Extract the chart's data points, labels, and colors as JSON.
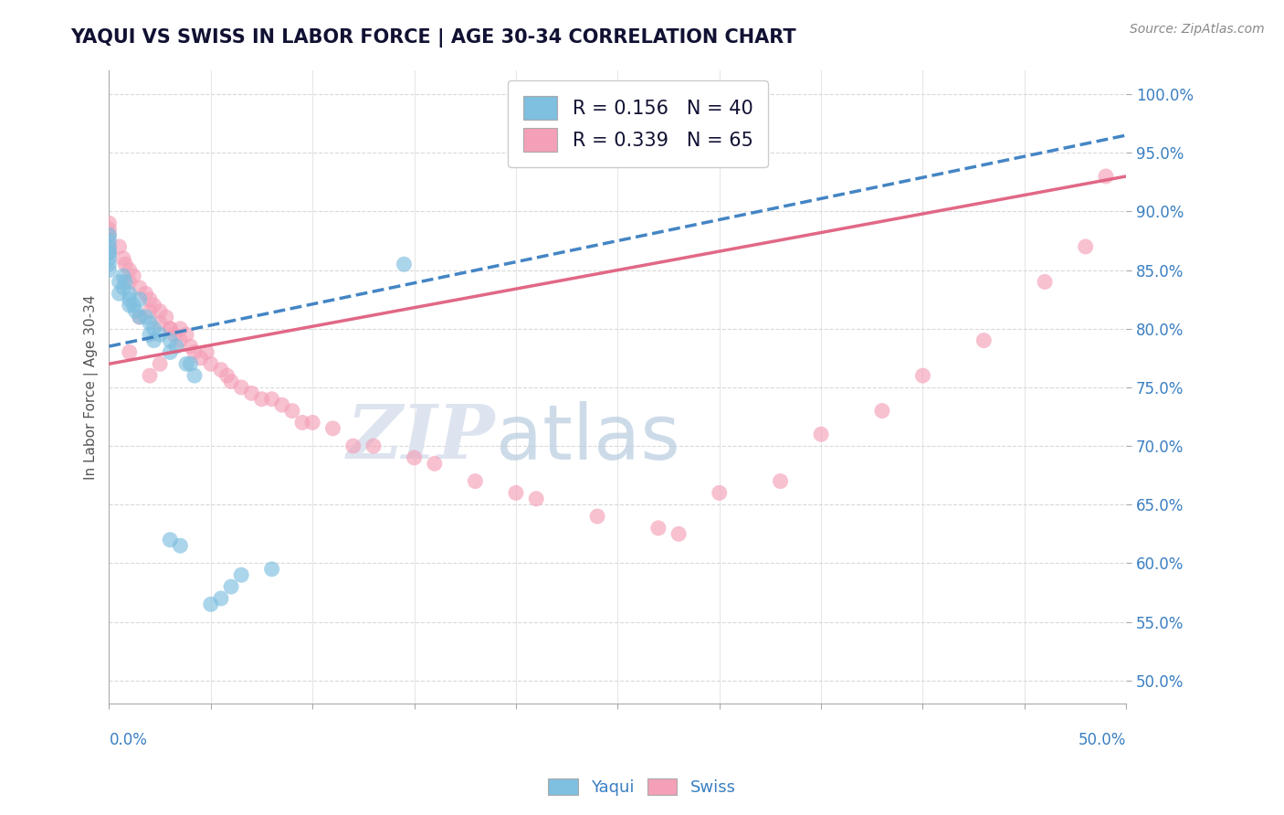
{
  "title": "YAQUI VS SWISS IN LABOR FORCE | AGE 30-34 CORRELATION CHART",
  "source_text": "Source: ZipAtlas.com",
  "ylabel": "In Labor Force | Age 30-34",
  "xmin": 0.0,
  "xmax": 0.5,
  "ymin": 0.48,
  "ymax": 1.02,
  "blue_color": "#7fbfdf",
  "pink_color": "#f4a0b8",
  "blue_line_color": "#3a7fc1",
  "pink_line_color": "#e06080",
  "R_blue": 0.156,
  "N_blue": 40,
  "R_pink": 0.339,
  "N_pink": 65,
  "background_color": "#ffffff",
  "grid_color": "#d0d0d0",
  "title_color": "#111133",
  "axis_color": "#3a7fc1",
  "watermark_color": "#dde4ef",
  "yaqui_x": [
    0.0,
    0.0,
    0.0,
    0.0,
    0.0,
    0.0,
    0.0,
    0.0,
    0.005,
    0.005,
    0.007,
    0.007,
    0.008,
    0.01,
    0.01,
    0.01,
    0.012,
    0.013,
    0.015,
    0.015,
    0.018,
    0.02,
    0.02,
    0.022,
    0.022,
    0.025,
    0.03,
    0.03,
    0.033,
    0.038,
    0.04,
    0.042,
    0.05,
    0.055,
    0.06,
    0.065,
    0.08,
    0.03,
    0.035,
    0.145
  ],
  "yaqui_y": [
    0.88,
    0.875,
    0.87,
    0.865,
    0.865,
    0.86,
    0.855,
    0.85,
    0.84,
    0.83,
    0.845,
    0.835,
    0.84,
    0.83,
    0.825,
    0.82,
    0.82,
    0.815,
    0.825,
    0.81,
    0.81,
    0.805,
    0.795,
    0.8,
    0.79,
    0.795,
    0.79,
    0.78,
    0.785,
    0.77,
    0.77,
    0.76,
    0.565,
    0.57,
    0.58,
    0.59,
    0.595,
    0.62,
    0.615,
    0.855
  ],
  "swiss_x": [
    0.0,
    0.0,
    0.0,
    0.0,
    0.0,
    0.005,
    0.007,
    0.008,
    0.01,
    0.01,
    0.012,
    0.015,
    0.018,
    0.02,
    0.02,
    0.022,
    0.025,
    0.025,
    0.028,
    0.03,
    0.032,
    0.035,
    0.035,
    0.038,
    0.04,
    0.042,
    0.045,
    0.048,
    0.05,
    0.055,
    0.058,
    0.06,
    0.065,
    0.07,
    0.075,
    0.08,
    0.085,
    0.09,
    0.095,
    0.1,
    0.11,
    0.12,
    0.13,
    0.15,
    0.16,
    0.18,
    0.2,
    0.21,
    0.24,
    0.27,
    0.28,
    0.3,
    0.33,
    0.35,
    0.38,
    0.4,
    0.43,
    0.46,
    0.48,
    0.49,
    0.01,
    0.015,
    0.02,
    0.025,
    0.03
  ],
  "swiss_y": [
    0.89,
    0.885,
    0.88,
    0.87,
    0.865,
    0.87,
    0.86,
    0.855,
    0.85,
    0.84,
    0.845,
    0.835,
    0.83,
    0.825,
    0.815,
    0.82,
    0.815,
    0.805,
    0.81,
    0.8,
    0.795,
    0.8,
    0.79,
    0.795,
    0.785,
    0.78,
    0.775,
    0.78,
    0.77,
    0.765,
    0.76,
    0.755,
    0.75,
    0.745,
    0.74,
    0.74,
    0.735,
    0.73,
    0.72,
    0.72,
    0.715,
    0.7,
    0.7,
    0.69,
    0.685,
    0.67,
    0.66,
    0.655,
    0.64,
    0.63,
    0.625,
    0.66,
    0.67,
    0.71,
    0.73,
    0.76,
    0.79,
    0.84,
    0.87,
    0.93,
    0.78,
    0.81,
    0.76,
    0.77,
    0.8
  ]
}
